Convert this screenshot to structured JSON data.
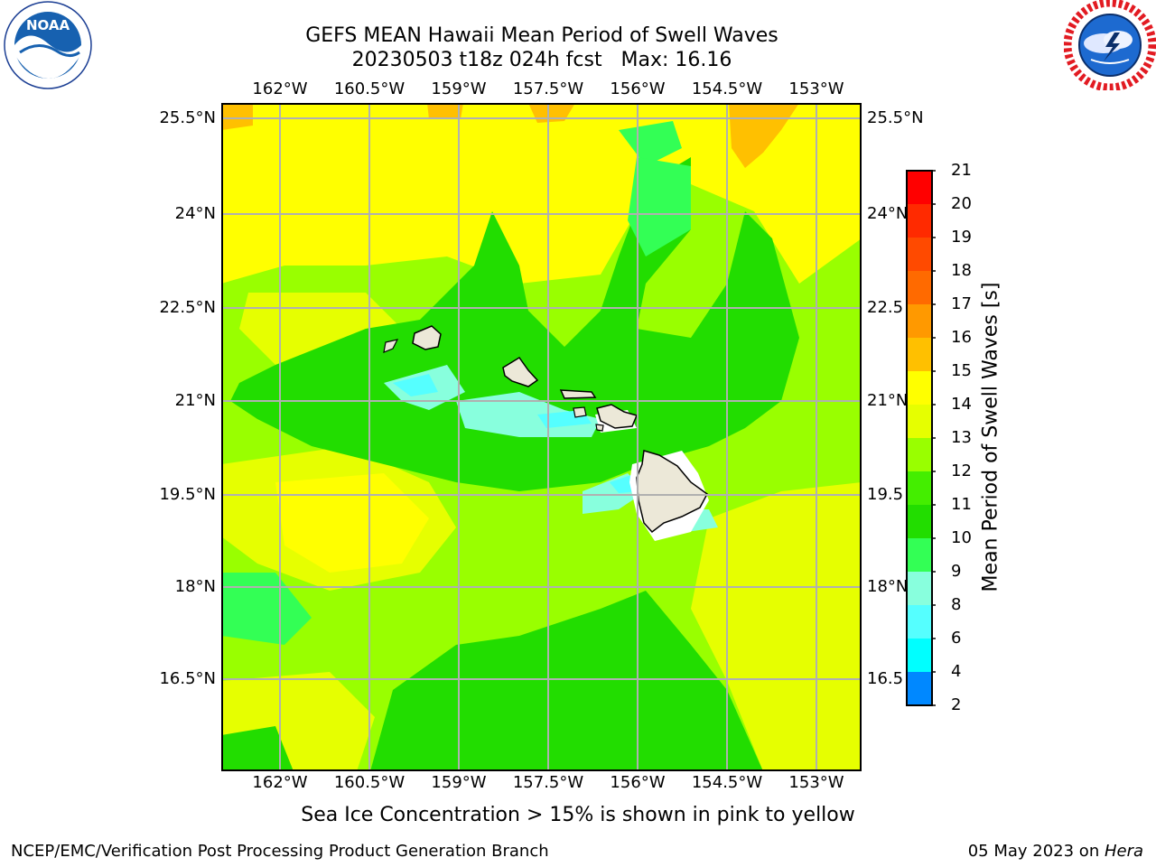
{
  "title": {
    "line1": "GEFS MEAN Hawaii Mean Period of Swell Waves",
    "line2": "20230503 t18z 024h fcst   Max: 16.16"
  },
  "map": {
    "lon_labels": [
      "162°W",
      "160.5°W",
      "159°W",
      "157.5°W",
      "156°W",
      "154.5°W",
      "153°W"
    ],
    "lat_labels": [
      "25.5°N",
      "24°N",
      "22.5°N",
      "21°N",
      "19.5°N",
      "18°N",
      "16.5°N"
    ],
    "lat_labels_right": [
      "25.5°N",
      "24°N",
      "22.5",
      "21°N",
      "19.5",
      "18°N",
      "16.5"
    ]
  },
  "colorbar": {
    "title": "Mean Period of Swell Waves [s]",
    "ticks": [
      "21",
      "20",
      "19",
      "18",
      "17",
      "16",
      "15",
      "14",
      "13",
      "12",
      "11",
      "10",
      "9",
      "8",
      "6",
      "4",
      "2"
    ],
    "colors": [
      "#ff0000",
      "#ff2a00",
      "#ff4a00",
      "#ff6a00",
      "#ff9900",
      "#ffc000",
      "#ffff00",
      "#e6ff00",
      "#99ff00",
      "#44ee00",
      "#22dd00",
      "#33ff55",
      "#88ffdd",
      "#55ffff",
      "#00ffff",
      "#0088ff",
      "#0000ff"
    ]
  },
  "note": "Sea Ice Concentration > 15% is shown in pink to yellow",
  "footer": {
    "left": "NCEP/EMC/Verification Post Processing Product Generation Branch",
    "right_prefix": "05 May 2023 on ",
    "right_host": "Hera"
  },
  "logos": {
    "noaa": "NOAA",
    "nws_ring": "NATIONAL WEATHER SERVICE",
    "noaa_ring": "NATIONAL OCEANIC AND ATMOSPHERIC ADMINISTRATION · U.S. DEPARTMENT OF COMMERCE"
  },
  "icons": [
    "noaa-logo",
    "nws-logo"
  ]
}
